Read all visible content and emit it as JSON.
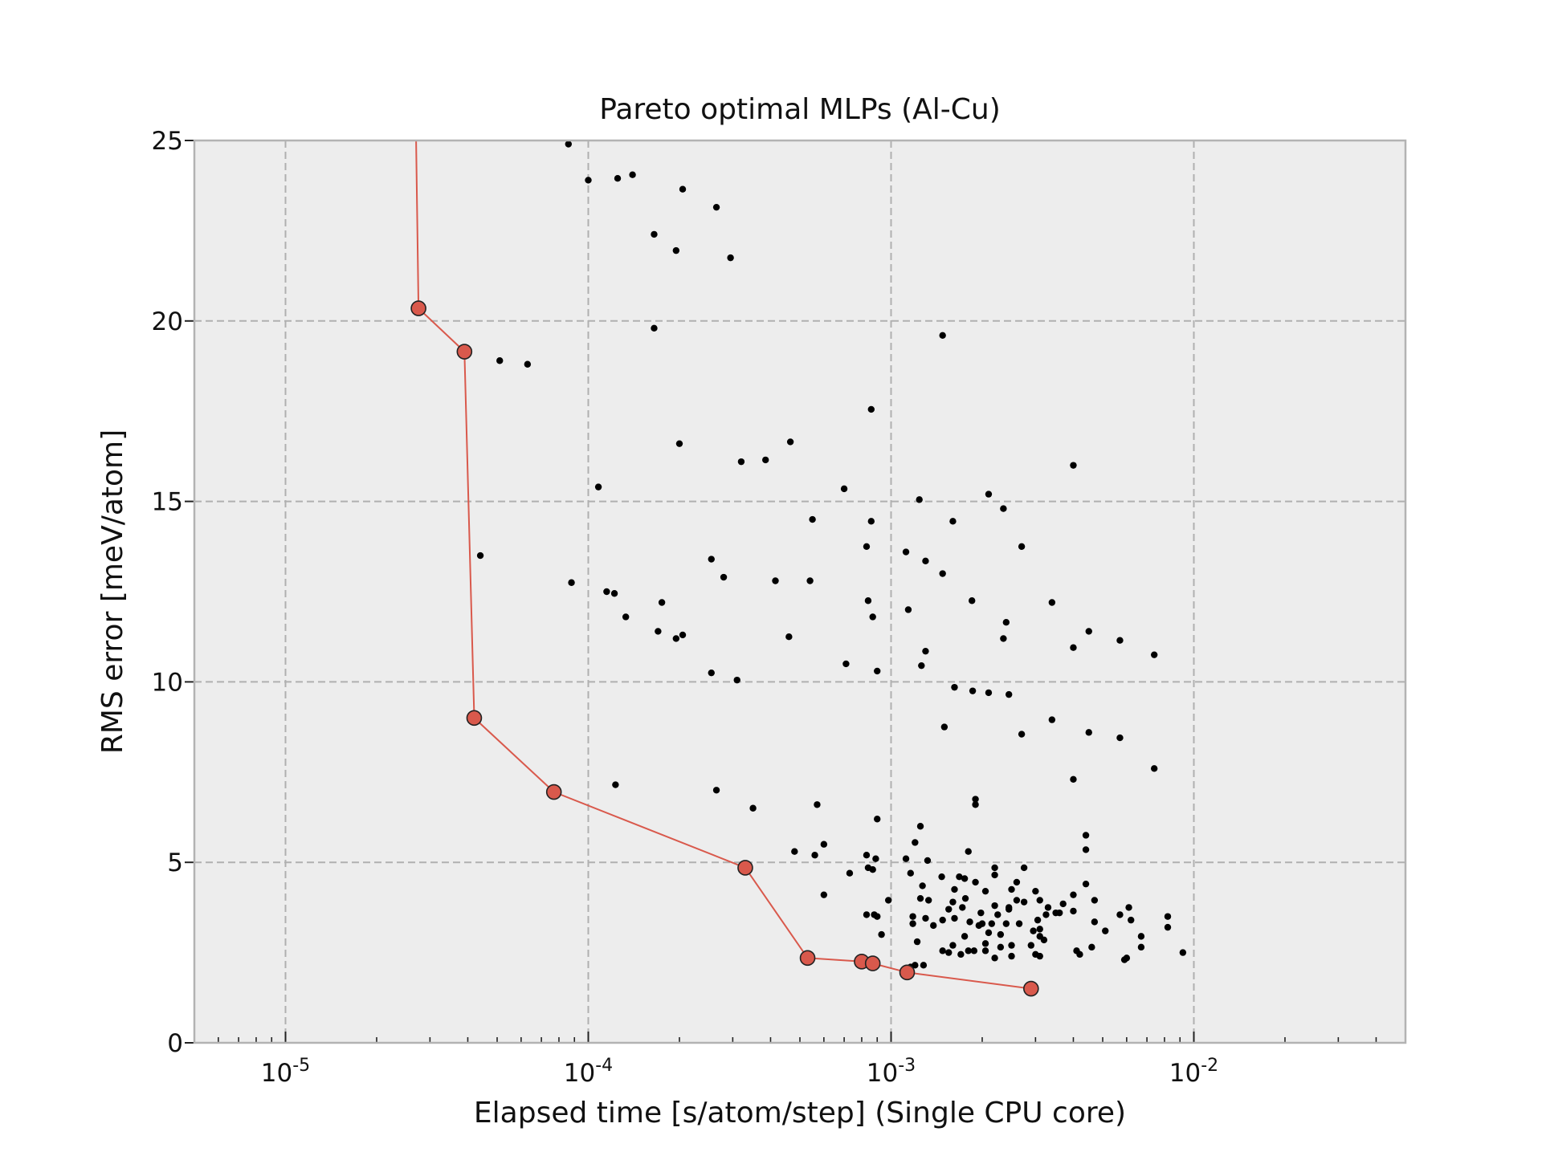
{
  "chart_data": {
    "type": "scatter",
    "title": "Pareto optimal MLPs (Al-Cu)",
    "xlabel": "Elapsed time [s/atom/step] (Single CPU core)",
    "ylabel": "RMS error [meV/atom]",
    "xscale": "log",
    "xlim": [
      5e-06,
      0.05
    ],
    "ylim": [
      0,
      25
    ],
    "grid": true,
    "background": "#ededed",
    "x_ticks": [
      {
        "base": "10",
        "exp": "-5",
        "value": 1e-05
      },
      {
        "base": "10",
        "exp": "-4",
        "value": 0.0001
      },
      {
        "base": "10",
        "exp": "-3",
        "value": 0.001
      },
      {
        "base": "10",
        "exp": "-2",
        "value": 0.01
      }
    ],
    "y_ticks": [
      {
        "label": "0",
        "value": 0
      },
      {
        "label": "5",
        "value": 5
      },
      {
        "label": "10",
        "value": 10
      },
      {
        "label": "15",
        "value": 15
      },
      {
        "label": "20",
        "value": 20
      },
      {
        "label": "25",
        "value": 25
      }
    ],
    "series": [
      {
        "kind": "pareto-front",
        "color": "#d9594c",
        "edge_color": "#222222",
        "line_start": [
          2.7e-05,
          25.0
        ],
        "points": [
          [
            2.75e-05,
            20.35
          ],
          [
            3.9e-05,
            19.15
          ],
          [
            4.2e-05,
            9.0
          ],
          [
            7.7e-05,
            6.95
          ],
          [
            0.00033,
            4.85
          ],
          [
            0.00053,
            2.35
          ],
          [
            0.0008,
            2.25
          ],
          [
            0.00087,
            2.2
          ],
          [
            0.00113,
            1.95
          ],
          [
            0.0029,
            1.5
          ]
        ]
      },
      {
        "kind": "other-mlps",
        "color": "#000000",
        "points": [
          [
            8.6e-05,
            24.9
          ],
          [
            0.0001,
            23.9
          ],
          [
            0.000125,
            23.95
          ],
          [
            0.00014,
            24.05
          ],
          [
            0.000205,
            23.65
          ],
          [
            0.000265,
            23.15
          ],
          [
            0.000165,
            22.4
          ],
          [
            0.000195,
            21.95
          ],
          [
            0.000295,
            21.75
          ],
          [
            0.000165,
            19.8
          ],
          [
            0.00148,
            19.6
          ],
          [
            5.1e-05,
            18.9
          ],
          [
            6.3e-05,
            18.8
          ],
          [
            0.00086,
            17.55
          ],
          [
            0.0002,
            16.6
          ],
          [
            0.000465,
            16.65
          ],
          [
            0.00032,
            16.1
          ],
          [
            0.000385,
            16.15
          ],
          [
            0.004,
            16.0
          ],
          [
            0.000108,
            15.4
          ],
          [
            0.0007,
            15.35
          ],
          [
            0.0021,
            15.2
          ],
          [
            0.00124,
            15.05
          ],
          [
            0.00235,
            14.8
          ],
          [
            0.00055,
            14.5
          ],
          [
            0.00086,
            14.45
          ],
          [
            0.0016,
            14.45
          ],
          [
            0.0027,
            13.75
          ],
          [
            0.00083,
            13.75
          ],
          [
            0.00112,
            13.6
          ],
          [
            4.4e-05,
            13.5
          ],
          [
            0.000255,
            13.4
          ],
          [
            0.0013,
            13.35
          ],
          [
            0.00148,
            13.0
          ],
          [
            0.00028,
            12.9
          ],
          [
            8.8e-05,
            12.75
          ],
          [
            0.000415,
            12.8
          ],
          [
            0.00054,
            12.8
          ],
          [
            0.000115,
            12.5
          ],
          [
            0.000122,
            12.45
          ],
          [
            0.000175,
            12.2
          ],
          [
            0.00084,
            12.25
          ],
          [
            0.00185,
            12.25
          ],
          [
            0.0034,
            12.2
          ],
          [
            0.00114,
            12.0
          ],
          [
            0.000133,
            11.8
          ],
          [
            0.00087,
            11.8
          ],
          [
            0.0024,
            11.65
          ],
          [
            0.00017,
            11.4
          ],
          [
            0.000205,
            11.3
          ],
          [
            0.0045,
            11.4
          ],
          [
            0.000195,
            11.2
          ],
          [
            0.00046,
            11.25
          ],
          [
            0.00235,
            11.2
          ],
          [
            0.0057,
            11.15
          ],
          [
            0.004,
            10.95
          ],
          [
            0.0013,
            10.85
          ],
          [
            0.0074,
            10.75
          ],
          [
            0.00071,
            10.5
          ],
          [
            0.00126,
            10.45
          ],
          [
            0.0009,
            10.3
          ],
          [
            0.000255,
            10.25
          ],
          [
            0.00031,
            10.05
          ],
          [
            0.00162,
            9.85
          ],
          [
            0.00186,
            9.75
          ],
          [
            0.0021,
            9.7
          ],
          [
            0.00245,
            9.65
          ],
          [
            0.0034,
            8.95
          ],
          [
            0.0015,
            8.75
          ],
          [
            0.0045,
            8.6
          ],
          [
            0.0027,
            8.55
          ],
          [
            0.0057,
            8.45
          ],
          [
            0.0074,
            7.6
          ],
          [
            0.004,
            7.3
          ],
          [
            0.000123,
            7.15
          ],
          [
            0.000265,
            7.0
          ],
          [
            0.0019,
            6.75
          ],
          [
            0.00035,
            6.5
          ],
          [
            0.00057,
            6.6
          ],
          [
            0.0019,
            6.6
          ],
          [
            0.0009,
            6.2
          ],
          [
            0.00125,
            6.0
          ],
          [
            0.0044,
            5.75
          ],
          [
            0.0006,
            5.5
          ],
          [
            0.0012,
            5.55
          ],
          [
            0.0044,
            5.35
          ],
          [
            0.00048,
            5.3
          ],
          [
            0.00056,
            5.2
          ],
          [
            0.00083,
            5.2
          ],
          [
            0.00089,
            5.1
          ],
          [
            0.00112,
            5.1
          ],
          [
            0.00132,
            5.05
          ],
          [
            0.0018,
            5.3
          ],
          [
            0.0022,
            4.85
          ],
          [
            0.00275,
            4.85
          ],
          [
            0.00084,
            4.85
          ],
          [
            0.00087,
            4.8
          ],
          [
            0.00073,
            4.7
          ],
          [
            0.00116,
            4.7
          ],
          [
            0.00147,
            4.6
          ],
          [
            0.00168,
            4.6
          ],
          [
            0.00175,
            4.55
          ],
          [
            0.0019,
            4.45
          ],
          [
            0.0022,
            4.65
          ],
          [
            0.0026,
            4.45
          ],
          [
            0.00127,
            4.35
          ],
          [
            0.00162,
            4.25
          ],
          [
            0.00205,
            4.2
          ],
          [
            0.0025,
            4.25
          ],
          [
            0.003,
            4.2
          ],
          [
            0.0044,
            4.4
          ],
          [
            0.00098,
            3.95
          ],
          [
            0.00125,
            4.0
          ],
          [
            0.00133,
            3.95
          ],
          [
            0.0016,
            3.9
          ],
          [
            0.00176,
            4.0
          ],
          [
            0.0022,
            3.8
          ],
          [
            0.00245,
            3.75
          ],
          [
            0.00275,
            3.9
          ],
          [
            0.0031,
            3.95
          ],
          [
            0.0033,
            3.75
          ],
          [
            0.0037,
            3.85
          ],
          [
            0.004,
            4.1
          ],
          [
            0.0047,
            3.95
          ],
          [
            0.00155,
            3.7
          ],
          [
            0.00172,
            3.75
          ],
          [
            0.00198,
            3.6
          ],
          [
            0.00225,
            3.55
          ],
          [
            0.00245,
            3.7
          ],
          [
            0.0026,
            3.95
          ],
          [
            0.00325,
            3.55
          ],
          [
            0.0036,
            3.6
          ],
          [
            0.004,
            3.65
          ],
          [
            0.0061,
            3.75
          ],
          [
            0.00083,
            3.55
          ],
          [
            0.00088,
            3.55
          ],
          [
            0.0009,
            3.5
          ],
          [
            0.00118,
            3.5
          ],
          [
            0.0013,
            3.45
          ],
          [
            0.00148,
            3.4
          ],
          [
            0.00162,
            3.45
          ],
          [
            0.00182,
            3.35
          ],
          [
            0.002,
            3.3
          ],
          [
            0.00215,
            3.3
          ],
          [
            0.00265,
            3.3
          ],
          [
            0.00305,
            3.4
          ],
          [
            0.0035,
            3.6
          ],
          [
            0.0047,
            3.35
          ],
          [
            0.0057,
            3.55
          ],
          [
            0.0062,
            3.4
          ],
          [
            0.0082,
            3.5
          ],
          [
            0.00118,
            3.3
          ],
          [
            0.00138,
            3.25
          ],
          [
            0.00195,
            3.25
          ],
          [
            0.0024,
            3.3
          ],
          [
            0.00295,
            3.1
          ],
          [
            0.0031,
            3.15
          ],
          [
            0.0051,
            3.1
          ],
          [
            0.0082,
            3.2
          ],
          [
            0.0006,
            4.1
          ],
          [
            0.00093,
            3.0
          ],
          [
            0.00175,
            2.95
          ],
          [
            0.0021,
            3.05
          ],
          [
            0.0023,
            3.0
          ],
          [
            0.0031,
            2.95
          ],
          [
            0.00122,
            2.8
          ],
          [
            0.0016,
            2.7
          ],
          [
            0.0018,
            2.55
          ],
          [
            0.00205,
            2.75
          ],
          [
            0.0023,
            2.65
          ],
          [
            0.0025,
            2.7
          ],
          [
            0.0029,
            2.7
          ],
          [
            0.0032,
            2.85
          ],
          [
            0.00148,
            2.55
          ],
          [
            0.00155,
            2.5
          ],
          [
            0.0017,
            2.45
          ],
          [
            0.00188,
            2.55
          ],
          [
            0.00205,
            2.55
          ],
          [
            0.0022,
            2.35
          ],
          [
            0.0025,
            2.4
          ],
          [
            0.003,
            2.45
          ],
          [
            0.0031,
            2.4
          ],
          [
            0.0041,
            2.55
          ],
          [
            0.0042,
            2.45
          ],
          [
            0.0046,
            2.65
          ],
          [
            0.0059,
            2.3
          ],
          [
            0.006,
            2.35
          ],
          [
            0.0067,
            2.65
          ],
          [
            0.0067,
            2.95
          ],
          [
            0.0092,
            2.5
          ],
          [
            0.0012,
            2.15
          ],
          [
            0.00128,
            2.15
          ],
          [
            0.00116,
            2.1
          ]
        ]
      }
    ]
  }
}
